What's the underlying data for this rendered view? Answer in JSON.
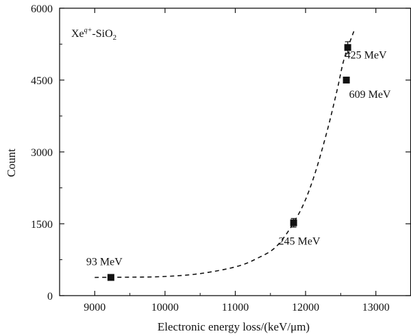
{
  "chart_data": {
    "type": "scatter",
    "title": "",
    "panel_label": {
      "base": "Xe",
      "charge": "q+",
      "rest": "-SiO",
      "sub": "2"
    },
    "xlabel": "Electronic energy loss/(keV/μm)",
    "ylabel": "Count",
    "xlim": [
      8500,
      13500
    ],
    "ylim": [
      0,
      6000
    ],
    "x_ticks": [
      9000,
      10000,
      11000,
      12000,
      13000
    ],
    "y_ticks": [
      0,
      1500,
      3000,
      4500,
      6000
    ],
    "x_tick_labels": [
      "9000",
      "10000",
      "11000",
      "12000",
      "13000"
    ],
    "y_tick_labels": [
      "0",
      "1500",
      "3000",
      "4500",
      "6000"
    ],
    "grid": false,
    "points": [
      {
        "x": 9230,
        "y": 380,
        "err": 30,
        "label": "93 MeV"
      },
      {
        "x": 11830,
        "y": 1520,
        "err": 90,
        "label": "245 MeV"
      },
      {
        "x": 12600,
        "y": 5180,
        "err": 120,
        "label": "425 MeV"
      },
      {
        "x": 12580,
        "y": 4500,
        "err": 40,
        "label": "609 MeV"
      }
    ],
    "fit_curve": {
      "style": "dashed",
      "x": [
        9000,
        9500,
        10000,
        10500,
        11000,
        11300,
        11600,
        11900,
        12100,
        12300,
        12450,
        12550,
        12700
      ],
      "y": [
        380,
        385,
        400,
        460,
        600,
        770,
        1050,
        1700,
        2400,
        3400,
        4300,
        4950,
        5570
      ]
    }
  }
}
